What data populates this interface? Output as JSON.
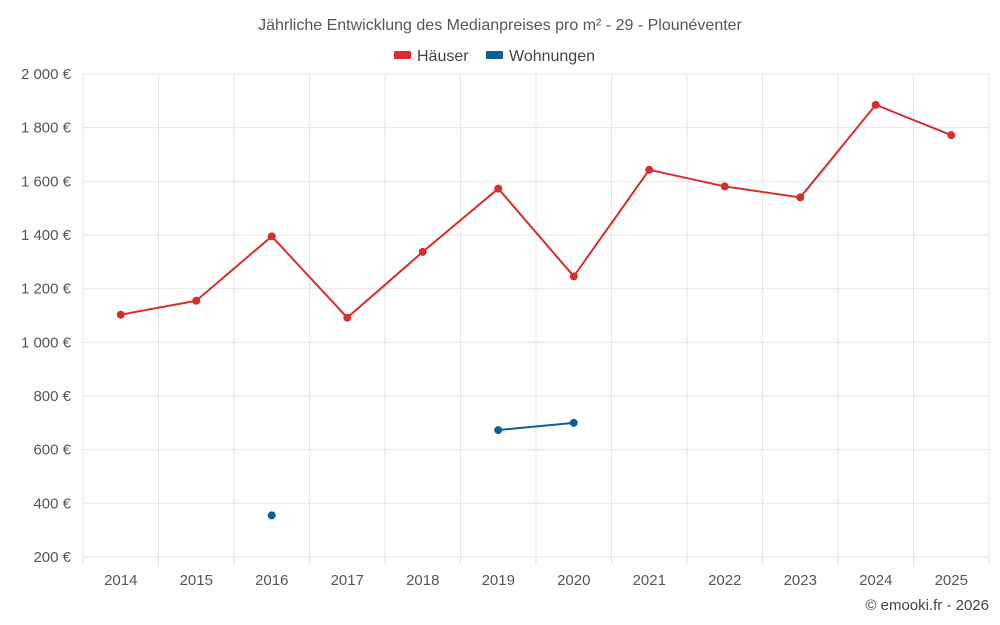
{
  "chart_data": {
    "type": "line",
    "title": "Jährliche Entwicklung des Medianpreises pro m² - 29 - Plounéventer",
    "xlabel": "",
    "ylabel": "",
    "categories": [
      "2014",
      "2015",
      "2016",
      "2017",
      "2018",
      "2019",
      "2020",
      "2021",
      "2022",
      "2023",
      "2024",
      "2025"
    ],
    "y_tick_labels": [
      "200 €",
      "400 €",
      "600 €",
      "800 €",
      "1 000 €",
      "1 200 €",
      "1 400 €",
      "1 600 €",
      "1 800 €",
      "2 000 €"
    ],
    "y_ticks": [
      200,
      400,
      600,
      800,
      1000,
      1200,
      1400,
      1600,
      1800,
      2000
    ],
    "ylim": [
      200,
      2000
    ],
    "grid": true,
    "legend_position": "top-center",
    "series": [
      {
        "name": "Häuser",
        "color": "#d32f2f",
        "values": [
          1103,
          1155,
          1395,
          1092,
          1337,
          1573,
          1246,
          1643,
          1581,
          1540,
          1885,
          1772
        ]
      },
      {
        "name": "Wohnungen",
        "color": "#0a5f96",
        "values": [
          null,
          null,
          355,
          null,
          null,
          673,
          700,
          null,
          null,
          null,
          null,
          null
        ]
      }
    ]
  },
  "credit": "© emooki.fr - 2026"
}
